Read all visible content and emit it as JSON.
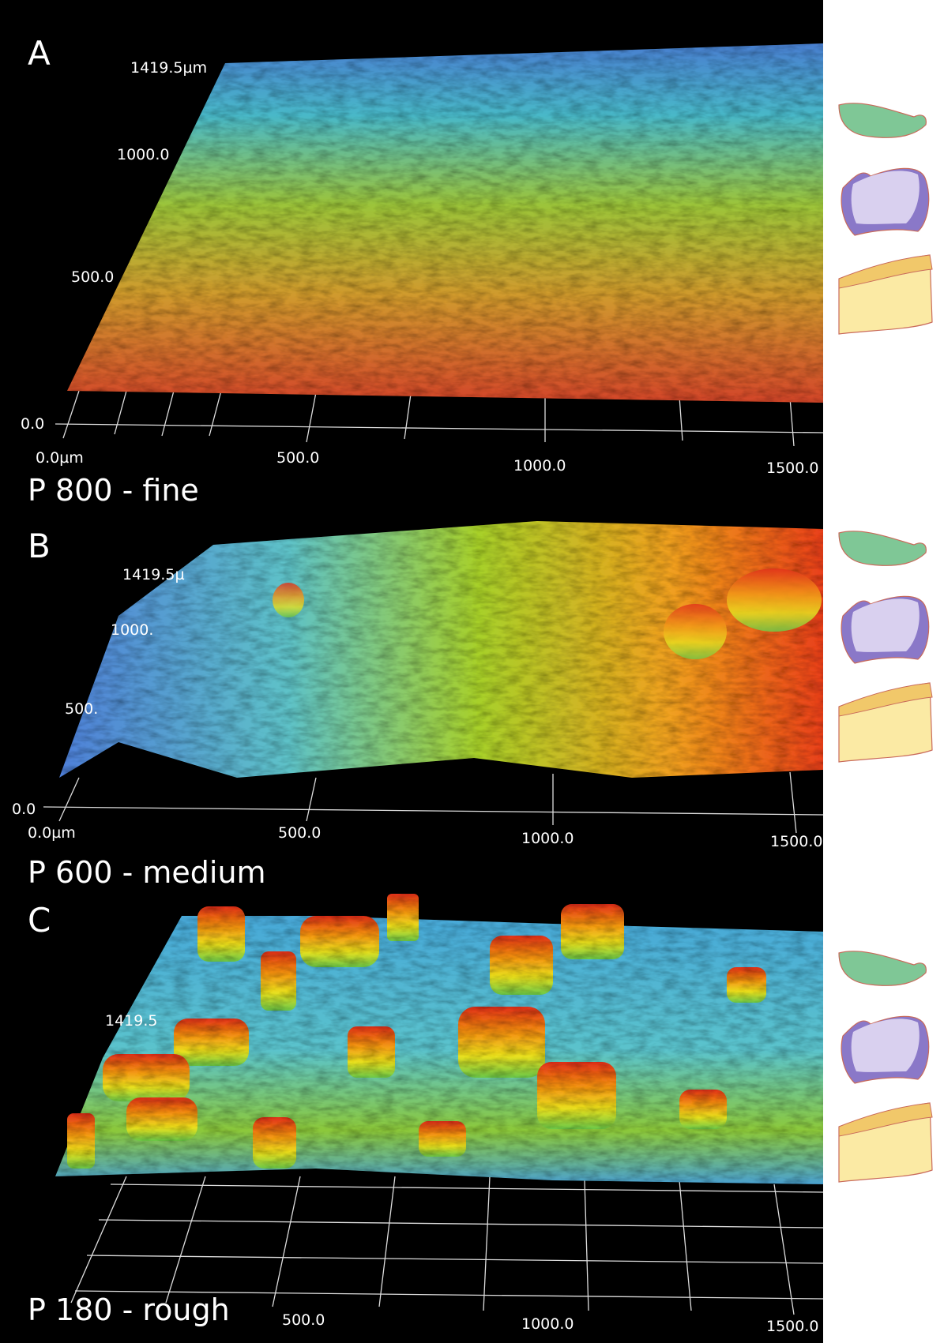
{
  "panels": [
    {
      "letter": "A",
      "caption": "P 800 - fine",
      "y_labels": [
        "1419.5µm",
        "1000.0",
        "500.0",
        "0.0"
      ],
      "x_labels": [
        "0.0µm",
        "500.0",
        "1000.0",
        "1500.0"
      ]
    },
    {
      "letter": "B",
      "caption": "P 600 - medium",
      "y_labels": [
        "1419.5µ",
        "1000.",
        "500.",
        "0.0"
      ],
      "x_labels": [
        "0.0µm",
        "500.0",
        "1000.0",
        "1500.0"
      ]
    },
    {
      "letter": "C",
      "caption": "P 180 - rough",
      "y_labels": [
        "1419.5"
      ],
      "x_labels": [
        "500.0",
        "1000.0",
        "1500.0"
      ]
    }
  ]
}
